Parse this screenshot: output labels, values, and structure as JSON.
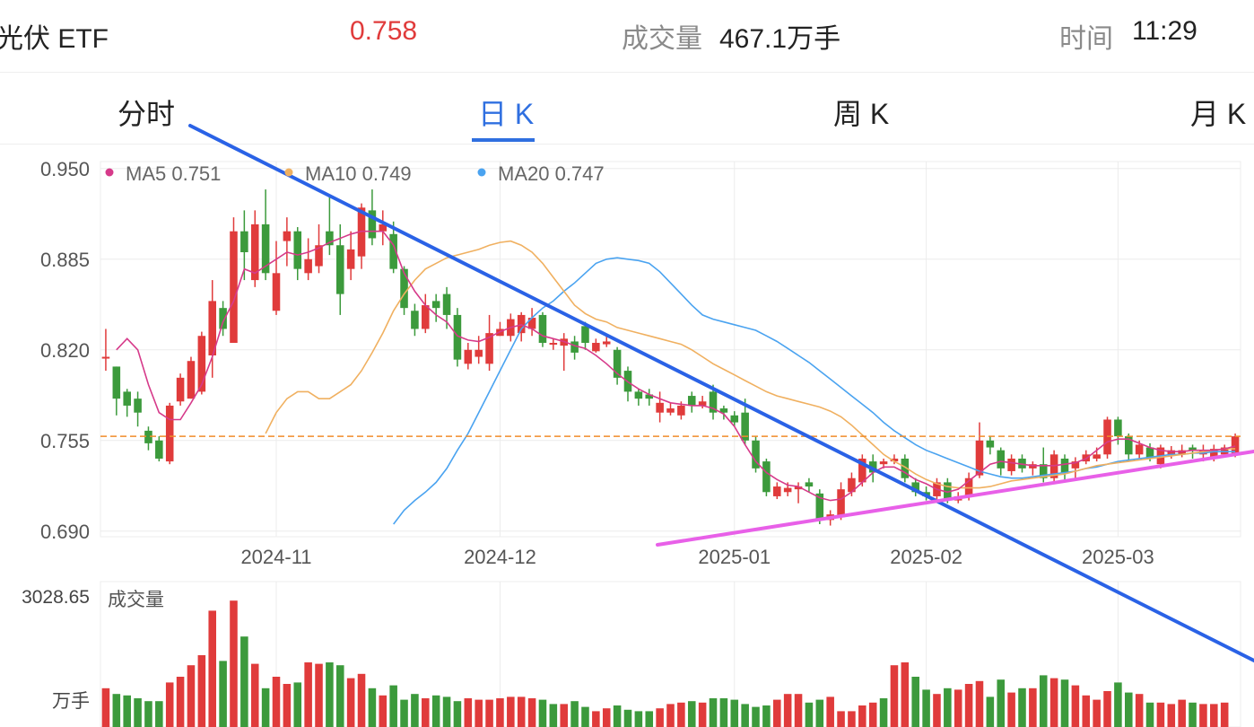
{
  "header": {
    "title": "光伏 ETF",
    "price": "0.758",
    "volume_label": "成交量",
    "volume_value": "467.1万手",
    "time_label": "时间",
    "time_value": "11:29"
  },
  "tabs": [
    {
      "label": "分时",
      "active": false
    },
    {
      "label": "日 K",
      "active": true
    },
    {
      "label": "周 K",
      "active": false
    },
    {
      "label": "月 K",
      "active": false
    }
  ],
  "colors": {
    "up": "#e03b3b",
    "down": "#3c9a3c",
    "ma5": "#d63a8a",
    "ma10": "#f0b060",
    "ma20": "#4aa3f0",
    "trend_down": "#2a62e6",
    "trend_up": "#e860e8",
    "ref_line": "#f08c2a",
    "grid": "#ececec"
  },
  "chart_data": {
    "type": "candlestick",
    "legend": [
      {
        "name": "MA5",
        "value": "0.751"
      },
      {
        "name": "MA10",
        "value": "0.749"
      },
      {
        "name": "MA20",
        "value": "0.747"
      }
    ],
    "y_ticks": [
      "0.950",
      "0.885",
      "0.820",
      "0.755",
      "0.690"
    ],
    "ylim": [
      0.686,
      0.955
    ],
    "x_ticks": [
      "2024-11",
      "2024-12",
      "2025-01",
      "2025-02",
      "2025-03"
    ],
    "x_tick_index": [
      16,
      37,
      59,
      77,
      95
    ],
    "reference_price": 0.758,
    "candles": [
      [
        0.815,
        0.815,
        0.835,
        0.805
      ],
      [
        0.808,
        0.785,
        0.808,
        0.773
      ],
      [
        0.79,
        0.78,
        0.792,
        0.772
      ],
      [
        0.785,
        0.775,
        0.79,
        0.765
      ],
      [
        0.762,
        0.753,
        0.765,
        0.748
      ],
      [
        0.755,
        0.742,
        0.758,
        0.74
      ],
      [
        0.74,
        0.78,
        0.782,
        0.738
      ],
      [
        0.783,
        0.8,
        0.803,
        0.78
      ],
      [
        0.785,
        0.812,
        0.815,
        0.785
      ],
      [
        0.79,
        0.83,
        0.833,
        0.788
      ],
      [
        0.816,
        0.855,
        0.87,
        0.8
      ],
      [
        0.85,
        0.835,
        0.855,
        0.83
      ],
      [
        0.825,
        0.905,
        0.915,
        0.825
      ],
      [
        0.905,
        0.89,
        0.92,
        0.87
      ],
      [
        0.87,
        0.91,
        0.92,
        0.865
      ],
      [
        0.91,
        0.875,
        0.935,
        0.87
      ],
      [
        0.848,
        0.875,
        0.898,
        0.845
      ],
      [
        0.898,
        0.905,
        0.915,
        0.88
      ],
      [
        0.905,
        0.878,
        0.908,
        0.87
      ],
      [
        0.875,
        0.885,
        0.9,
        0.87
      ],
      [
        0.88,
        0.895,
        0.91,
        0.875
      ],
      [
        0.905,
        0.895,
        0.93,
        0.888
      ],
      [
        0.895,
        0.86,
        0.91,
        0.845
      ],
      [
        0.878,
        0.892,
        0.905,
        0.87
      ],
      [
        0.887,
        0.922,
        0.925,
        0.878
      ],
      [
        0.92,
        0.9,
        0.935,
        0.895
      ],
      [
        0.905,
        0.91,
        0.92,
        0.895
      ],
      [
        0.903,
        0.878,
        0.912,
        0.875
      ],
      [
        0.878,
        0.85,
        0.88,
        0.845
      ],
      [
        0.848,
        0.835,
        0.853,
        0.83
      ],
      [
        0.835,
        0.852,
        0.86,
        0.832
      ],
      [
        0.855,
        0.85,
        0.86,
        0.84
      ],
      [
        0.86,
        0.845,
        0.865,
        0.835
      ],
      [
        0.845,
        0.813,
        0.85,
        0.808
      ],
      [
        0.81,
        0.82,
        0.825,
        0.806
      ],
      [
        0.815,
        0.82,
        0.83,
        0.81
      ],
      [
        0.81,
        0.832,
        0.845,
        0.805
      ],
      [
        0.83,
        0.835,
        0.84,
        0.83
      ],
      [
        0.83,
        0.842,
        0.846,
        0.826
      ],
      [
        0.832,
        0.845,
        0.847,
        0.826
      ],
      [
        0.835,
        0.843,
        0.85,
        0.83
      ],
      [
        0.845,
        0.825,
        0.847,
        0.822
      ],
      [
        0.825,
        0.825,
        0.828,
        0.82
      ],
      [
        0.823,
        0.828,
        0.832,
        0.805
      ],
      [
        0.826,
        0.818,
        0.83,
        0.813
      ],
      [
        0.837,
        0.825,
        0.84,
        0.82
      ],
      [
        0.819,
        0.825,
        0.828,
        0.818
      ],
      [
        0.824,
        0.826,
        0.83,
        0.822
      ],
      [
        0.82,
        0.8,
        0.822,
        0.795
      ],
      [
        0.805,
        0.79,
        0.808,
        0.783
      ],
      [
        0.79,
        0.785,
        0.792,
        0.78
      ],
      [
        0.788,
        0.785,
        0.792,
        0.78
      ],
      [
        0.775,
        0.782,
        0.79,
        0.768
      ],
      [
        0.775,
        0.778,
        0.782,
        0.773
      ],
      [
        0.773,
        0.78,
        0.783,
        0.77
      ],
      [
        0.787,
        0.78,
        0.79,
        0.775
      ],
      [
        0.78,
        0.783,
        0.787,
        0.778
      ],
      [
        0.79,
        0.775,
        0.795,
        0.77
      ],
      [
        0.778,
        0.775,
        0.78,
        0.77
      ],
      [
        0.773,
        0.768,
        0.776,
        0.765
      ],
      [
        0.775,
        0.755,
        0.785,
        0.752
      ],
      [
        0.755,
        0.735,
        0.758,
        0.732
      ],
      [
        0.74,
        0.718,
        0.742,
        0.715
      ],
      [
        0.715,
        0.722,
        0.725,
        0.713
      ],
      [
        0.718,
        0.721,
        0.725,
        0.715
      ],
      [
        0.72,
        0.722,
        0.725,
        0.71
      ],
      [
        0.725,
        0.722,
        0.728,
        0.718
      ],
      [
        0.717,
        0.698,
        0.72,
        0.695
      ],
      [
        0.698,
        0.702,
        0.705,
        0.694
      ],
      [
        0.7,
        0.72,
        0.725,
        0.698
      ],
      [
        0.718,
        0.728,
        0.732,
        0.715
      ],
      [
        0.725,
        0.742,
        0.745,
        0.722
      ],
      [
        0.74,
        0.732,
        0.745,
        0.725
      ],
      [
        0.738,
        0.74,
        0.742,
        0.735
      ],
      [
        0.74,
        0.742,
        0.745,
        0.738
      ],
      [
        0.742,
        0.728,
        0.745,
        0.725
      ],
      [
        0.725,
        0.718,
        0.728,
        0.715
      ],
      [
        0.718,
        0.715,
        0.722,
        0.712
      ],
      [
        0.715,
        0.725,
        0.728,
        0.712
      ],
      [
        0.725,
        0.712,
        0.728,
        0.71
      ],
      [
        0.712,
        0.715,
        0.718,
        0.71
      ],
      [
        0.715,
        0.728,
        0.732,
        0.712
      ],
      [
        0.73,
        0.755,
        0.768,
        0.728
      ],
      [
        0.755,
        0.75,
        0.758,
        0.745
      ],
      [
        0.748,
        0.735,
        0.75,
        0.73
      ],
      [
        0.733,
        0.742,
        0.745,
        0.73
      ],
      [
        0.742,
        0.735,
        0.745,
        0.732
      ],
      [
        0.735,
        0.738,
        0.74,
        0.73
      ],
      [
        0.738,
        0.728,
        0.75,
        0.725
      ],
      [
        0.728,
        0.745,
        0.748,
        0.725
      ],
      [
        0.742,
        0.732,
        0.745,
        0.725
      ],
      [
        0.735,
        0.74,
        0.743,
        0.728
      ],
      [
        0.74,
        0.745,
        0.748,
        0.738
      ],
      [
        0.742,
        0.745,
        0.75,
        0.74
      ],
      [
        0.745,
        0.77,
        0.772,
        0.742
      ],
      [
        0.77,
        0.758,
        0.772,
        0.752
      ],
      [
        0.758,
        0.745,
        0.76,
        0.74
      ],
      [
        0.745,
        0.752,
        0.755,
        0.742
      ],
      [
        0.75,
        0.742,
        0.753,
        0.74
      ],
      [
        0.738,
        0.75,
        0.752,
        0.735
      ],
      [
        0.745,
        0.748,
        0.751,
        0.742
      ],
      [
        0.745,
        0.748,
        0.752,
        0.743
      ],
      [
        0.75,
        0.748,
        0.752,
        0.742
      ],
      [
        0.745,
        0.748,
        0.752,
        0.74
      ],
      [
        0.742,
        0.749,
        0.752,
        0.74
      ],
      [
        0.745,
        0.75,
        0.752,
        0.744
      ],
      [
        0.745,
        0.758,
        0.76,
        0.743
      ]
    ],
    "ma5": [
      0.82,
      0.828,
      0.82,
      0.795,
      0.775,
      0.77,
      0.77,
      0.782,
      0.795,
      0.815,
      0.84,
      0.855,
      0.878,
      0.875,
      0.88,
      0.885,
      0.89,
      0.888,
      0.89,
      0.893,
      0.897,
      0.9,
      0.903,
      0.905,
      0.905,
      0.905,
      0.895,
      0.875,
      0.862,
      0.852,
      0.845,
      0.84,
      0.83,
      0.827,
      0.826,
      0.829,
      0.833,
      0.836,
      0.838,
      0.835,
      0.83,
      0.828,
      0.826,
      0.823,
      0.821,
      0.816,
      0.81,
      0.803,
      0.797,
      0.792,
      0.788,
      0.785,
      0.782,
      0.781,
      0.78,
      0.78,
      0.778,
      0.774,
      0.765,
      0.752,
      0.74,
      0.732,
      0.727,
      0.723,
      0.722,
      0.718,
      0.714,
      0.712,
      0.713,
      0.718,
      0.725,
      0.732,
      0.736,
      0.736,
      0.732,
      0.727,
      0.724,
      0.72,
      0.718,
      0.72,
      0.726,
      0.732,
      0.738,
      0.74,
      0.739,
      0.738,
      0.737,
      0.737,
      0.737,
      0.738,
      0.739,
      0.742,
      0.748,
      0.754,
      0.756,
      0.756,
      0.753,
      0.75,
      0.748,
      0.747,
      0.747,
      0.748,
      0.748,
      0.748,
      0.749,
      0.751
    ],
    "ma10": [
      0.76,
      0.775,
      0.785,
      0.79,
      0.79,
      0.785,
      0.785,
      0.79,
      0.795,
      0.805,
      0.818,
      0.832,
      0.848,
      0.86,
      0.87,
      0.878,
      0.882,
      0.886,
      0.888,
      0.89,
      0.892,
      0.895,
      0.897,
      0.898,
      0.895,
      0.89,
      0.882,
      0.872,
      0.862,
      0.852,
      0.846,
      0.842,
      0.84,
      0.836,
      0.834,
      0.832,
      0.83,
      0.828,
      0.826,
      0.824,
      0.82,
      0.815,
      0.81,
      0.806,
      0.802,
      0.798,
      0.794,
      0.79,
      0.787,
      0.785,
      0.783,
      0.781,
      0.779,
      0.776,
      0.772,
      0.766,
      0.759,
      0.752,
      0.745,
      0.74,
      0.736,
      0.731,
      0.727,
      0.724,
      0.722,
      0.721,
      0.721,
      0.721,
      0.722,
      0.724,
      0.726,
      0.727,
      0.728,
      0.729,
      0.73,
      0.731,
      0.733,
      0.735,
      0.737,
      0.738,
      0.739,
      0.74,
      0.741,
      0.742,
      0.743,
      0.744,
      0.745,
      0.746,
      0.747,
      0.748,
      0.749,
      0.749
    ],
    "ma20": [
      0.695,
      0.705,
      0.712,
      0.718,
      0.725,
      0.735,
      0.748,
      0.76,
      0.775,
      0.79,
      0.805,
      0.82,
      0.835,
      0.843,
      0.85,
      0.855,
      0.862,
      0.868,
      0.875,
      0.882,
      0.885,
      0.886,
      0.885,
      0.884,
      0.882,
      0.876,
      0.868,
      0.86,
      0.852,
      0.845,
      0.842,
      0.84,
      0.838,
      0.836,
      0.834,
      0.83,
      0.826,
      0.821,
      0.816,
      0.811,
      0.805,
      0.799,
      0.793,
      0.787,
      0.781,
      0.775,
      0.768,
      0.762,
      0.757,
      0.752,
      0.748,
      0.745,
      0.742,
      0.739,
      0.736,
      0.733,
      0.731,
      0.729,
      0.728,
      0.728,
      0.729,
      0.73,
      0.731,
      0.732,
      0.733,
      0.735,
      0.736,
      0.738,
      0.74,
      0.741,
      0.742,
      0.743,
      0.744,
      0.745,
      0.745,
      0.746,
      0.746,
      0.747,
      0.747,
      0.747
    ],
    "volume": {
      "label": "成交量",
      "unit": "万手",
      "max_label": "3028.65",
      "values": [
        0.27,
        0.23,
        0.22,
        0.2,
        0.18,
        0.18,
        0.31,
        0.35,
        0.43,
        0.5,
        0.81,
        0.46,
        0.88,
        0.63,
        0.44,
        0.27,
        0.35,
        0.3,
        0.31,
        0.45,
        0.44,
        0.45,
        0.43,
        0.34,
        0.37,
        0.27,
        0.22,
        0.29,
        0.19,
        0.23,
        0.2,
        0.22,
        0.21,
        0.18,
        0.2,
        0.19,
        0.19,
        0.2,
        0.21,
        0.21,
        0.2,
        0.19,
        0.16,
        0.16,
        0.18,
        0.14,
        0.11,
        0.13,
        0.15,
        0.12,
        0.11,
        0.11,
        0.13,
        0.16,
        0.17,
        0.18,
        0.17,
        0.2,
        0.2,
        0.19,
        0.16,
        0.14,
        0.15,
        0.19,
        0.23,
        0.23,
        0.17,
        0.19,
        0.21,
        0.11,
        0.11,
        0.15,
        0.17,
        0.2,
        0.43,
        0.45,
        0.35,
        0.26,
        0.23,
        0.27,
        0.26,
        0.3,
        0.32,
        0.21,
        0.33,
        0.24,
        0.27,
        0.27,
        0.36,
        0.34,
        0.33,
        0.29,
        0.22,
        0.19,
        0.25,
        0.31,
        0.24,
        0.23,
        0.17,
        0.17,
        0.16,
        0.19,
        0.17,
        0.16,
        0.16,
        0.17
      ],
      "up_flags": [
        1,
        0,
        0,
        0,
        0,
        0,
        1,
        1,
        1,
        1,
        1,
        0,
        1,
        0,
        1,
        0,
        1,
        1,
        0,
        1,
        1,
        0,
        0,
        1,
        1,
        0,
        1,
        0,
        0,
        0,
        1,
        0,
        0,
        0,
        1,
        1,
        1,
        1,
        1,
        1,
        1,
        0,
        0,
        1,
        0,
        0,
        1,
        1,
        0,
        0,
        0,
        0,
        1,
        1,
        1,
        0,
        1,
        0,
        0,
        0,
        0,
        0,
        0,
        1,
        1,
        1,
        0,
        0,
        1,
        1,
        1,
        1,
        1,
        0,
        1,
        1,
        0,
        0,
        1,
        0,
        1,
        1,
        1,
        0,
        0,
        1,
        0,
        1,
        0,
        1,
        0,
        1,
        1,
        1,
        1,
        0,
        0,
        1,
        0,
        1,
        1,
        1,
        0,
        1,
        1,
        1
      ]
    }
  }
}
